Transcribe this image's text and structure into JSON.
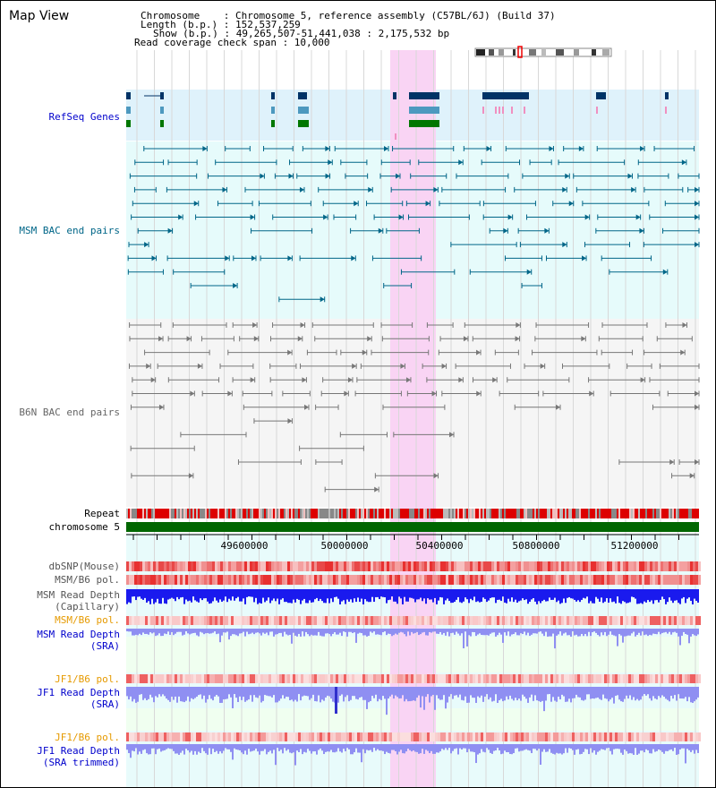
{
  "title": "Map View",
  "info": {
    "chromosome": "Chromosome    : Chromosome 5, reference assembly (C57BL/6J) (Build 37)",
    "length": "Length (b.p.) : 152,537,259",
    "show": "Show (b.p.) : 49,265,507-51,441,038 : 2,175,532 bp",
    "coverage": "Read coverage check span : 10,000"
  },
  "tracks": {
    "refseq": "RefSeq Genes",
    "msm_bac": "MSM BAC end pairs",
    "b6n_bac": "B6N BAC end pairs",
    "repeat": "Repeat",
    "chrom": "chromosome 5",
    "dbsnp": "dbSNP(Mouse)",
    "msm_b6_pol_1": "MSM/B6 pol.",
    "msm_depth_cap_1": "MSM Read Depth",
    "msm_depth_cap_2": "(Capillary)",
    "msm_b6_pol_2": "MSM/B6 pol.",
    "msm_depth_sra_1": "MSM Read Depth",
    "msm_depth_sra_2": "(SRA)",
    "jf1_pol_1": "JF1/B6 pol.",
    "jf1_depth_sra_1": "JF1 Read Depth",
    "jf1_depth_sra_2": "(SRA)",
    "jf1_pol_2": "JF1/B6 pol.",
    "jf1_depth_trim_1": "JF1 Read Depth",
    "jf1_depth_trim_2": "(SRA trimmed)"
  },
  "axis_ticks": [
    "49600000",
    "50000000",
    "50400000",
    "50800000",
    "51200000"
  ],
  "colors": {
    "refseq_label": "#0000cc",
    "msm_bac": "#006688",
    "b6n_bac": "#777777",
    "chrom_bar": "#006600",
    "highlight": "#f9d4f4",
    "depth_msm": "#1a1aee",
    "depth_sra": "#8f8ff2",
    "pol_orange_label": "#e69a00"
  }
}
